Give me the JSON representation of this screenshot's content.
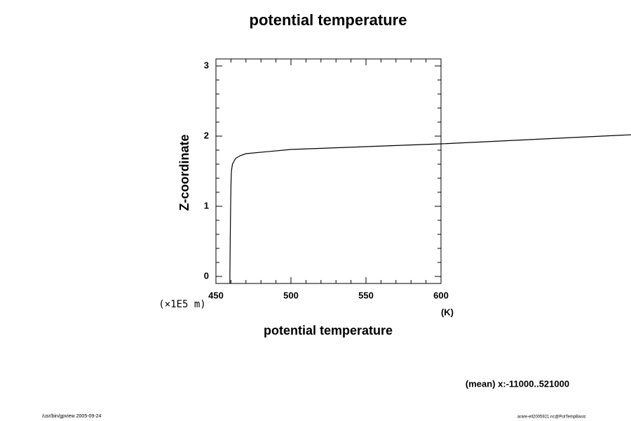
{
  "chart_data": {
    "type": "line",
    "title": "potential temperature",
    "x_label": "potential temperature",
    "x_unit": "(K)",
    "y_label": "Z-coordinate",
    "y_unit": "(×1E5 m)",
    "annotation": "(mean) x:-11000..521000",
    "footer_left": "/usr/bin/gpview 2005-09-24",
    "footer_right": "arare-ell2005921.nc@PotTempBasic",
    "x": [
      459.3,
      459.3,
      459.5,
      459.8,
      460.0,
      460.3,
      461.0,
      463.0,
      466.0,
      470.0,
      500.0,
      600.0,
      727.0
    ],
    "values": [
      -0.1,
      0,
      0.5,
      1.0,
      1.3,
      1.5,
      1.6,
      1.68,
      1.72,
      1.75,
      1.81,
      1.89,
      2.02
    ],
    "color": "#000000",
    "xlim": [
      450,
      600
    ],
    "xticks": [
      450,
      500,
      550,
      600
    ],
    "xminorticks": [
      460,
      470,
      480,
      490,
      510,
      520,
      530,
      540,
      560,
      570,
      580,
      590
    ],
    "ylim": [
      -0.1,
      3.1
    ],
    "yticks": [
      0,
      1,
      2,
      3
    ],
    "yminorticks": [
      0.2,
      0.4,
      0.6,
      0.8,
      1.2,
      1.4,
      1.6,
      1.8,
      2.2,
      2.4,
      2.6,
      2.8
    ]
  }
}
